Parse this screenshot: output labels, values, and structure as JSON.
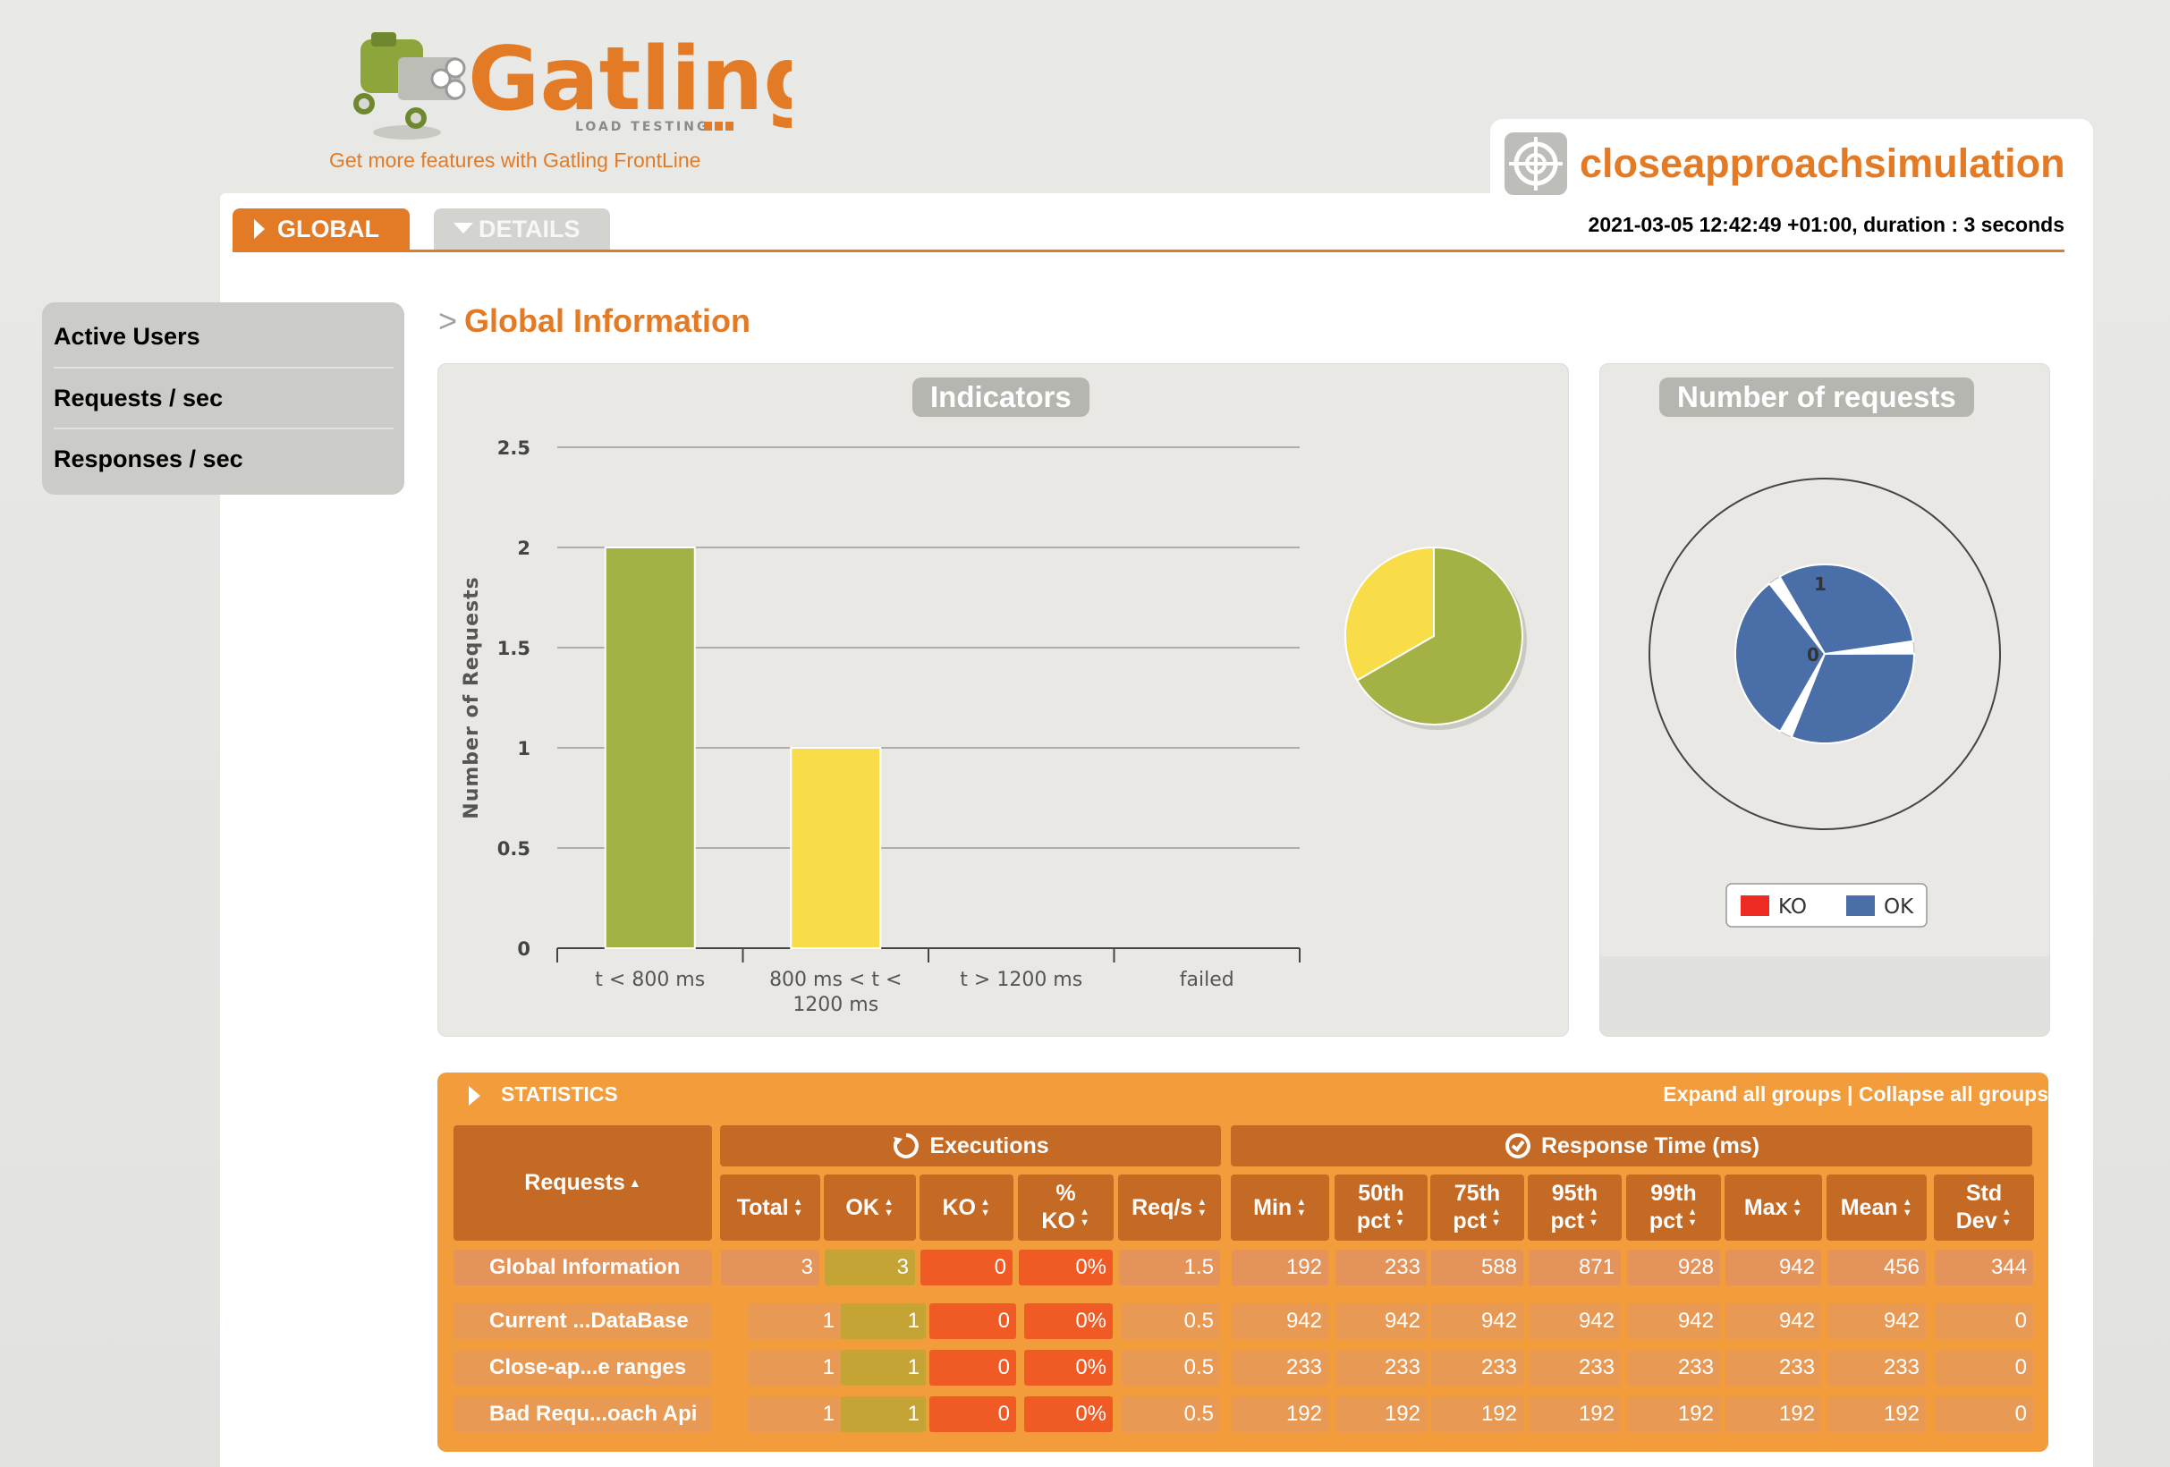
{
  "header": {
    "logo_text": "Gatling",
    "logo_sub": "LOAD TESTING",
    "frontline_link": "Get more features with Gatling FrontLine",
    "simulation_name": "closeapproachsimulation",
    "run_info": "2021-03-05 12:42:49 +01:00, duration : 3 seconds"
  },
  "tabs": [
    {
      "label": "GLOBAL"
    },
    {
      "label": "DETAILS"
    }
  ],
  "sidebar": {
    "items": [
      {
        "label": "Active Users"
      },
      {
        "label": "Requests / sec"
      },
      {
        "label": "Responses / sec"
      }
    ]
  },
  "section": {
    "title": "Global Information",
    "prefix": ">"
  },
  "indicators": {
    "title": "Indicators"
  },
  "number_of_requests": {
    "title": "Number of requests",
    "radial_labels": [
      "1",
      "0"
    ],
    "legend": [
      {
        "label": "KO",
        "color": "#ed2b22"
      },
      {
        "label": "OK",
        "color": "#4a6ea8"
      }
    ]
  },
  "chart_data": [
    {
      "type": "bar",
      "title": "Indicators",
      "ylabel": "Number of Requests",
      "xlabel": "",
      "categories": [
        "t < 800 ms",
        "800 ms < t < 1200 ms",
        "t > 1200 ms",
        "failed"
      ],
      "category_lines": [
        [
          "t < 800 ms"
        ],
        [
          "800 ms < t <",
          "1200 ms"
        ],
        [
          "t > 1200 ms"
        ],
        [
          "failed"
        ]
      ],
      "values": [
        2,
        1,
        0,
        0
      ],
      "colors": [
        "#a3b145",
        "#f8dc48",
        "#e37b26",
        "#ed2b22"
      ],
      "ylim": [
        0,
        2.5
      ],
      "yticks": [
        "0",
        "0.5",
        "1",
        "1.5",
        "2",
        "2.5"
      ],
      "grid": true
    },
    {
      "type": "pie",
      "slices": [
        {
          "label": "t < 800 ms",
          "value": 2,
          "color": "#a3b145"
        },
        {
          "label": "800 ms < t < 1200 ms",
          "value": 1,
          "color": "#f8dc48"
        }
      ]
    },
    {
      "type": "pie",
      "title": "Number of requests",
      "categories": [
        "Current ...DataBase",
        "Close-ap...e ranges",
        "Bad Requ...oach Api"
      ],
      "series": [
        {
          "name": "OK",
          "values": [
            1,
            1,
            1
          ],
          "color": "#4a6ea8"
        },
        {
          "name": "KO",
          "values": [
            0,
            0,
            0
          ],
          "color": "#ed2b22"
        }
      ],
      "rlim": [
        0,
        1
      ]
    }
  ],
  "statistics": {
    "title": "STATISTICS",
    "expand_label": "Expand all groups",
    "separator": " | ",
    "collapse_label": "Collapse all groups",
    "executions_header": "Executions",
    "response_time_header": "Response Time (ms)",
    "columns": [
      {
        "l1": "Requests",
        "l2": ""
      },
      {
        "l1": "Total",
        "l2": ""
      },
      {
        "l1": "OK",
        "l2": ""
      },
      {
        "l1": "KO",
        "l2": ""
      },
      {
        "l1": "%",
        "l2": "KO"
      },
      {
        "l1": "Req/s",
        "l2": ""
      },
      {
        "l1": "Min",
        "l2": ""
      },
      {
        "l1": "50th",
        "l2": "pct"
      },
      {
        "l1": "75th",
        "l2": "pct"
      },
      {
        "l1": "95th",
        "l2": "pct"
      },
      {
        "l1": "99th",
        "l2": "pct"
      },
      {
        "l1": "Max",
        "l2": ""
      },
      {
        "l1": "Mean",
        "l2": ""
      },
      {
        "l1": "Std",
        "l2": "Dev"
      }
    ],
    "global_row": [
      "Global Information",
      "3",
      "3",
      "0",
      "0%",
      "1.5",
      "192",
      "233",
      "588",
      "871",
      "928",
      "942",
      "456",
      "344"
    ],
    "rows": [
      [
        "Current ...DataBase",
        "1",
        "1",
        "0",
        "0%",
        "0.5",
        "942",
        "942",
        "942",
        "942",
        "942",
        "942",
        "942",
        "0"
      ],
      [
        "Close-ap...e ranges",
        "1",
        "1",
        "0",
        "0%",
        "0.5",
        "233",
        "233",
        "233",
        "233",
        "233",
        "233",
        "233",
        "0"
      ],
      [
        "Bad Requ...oach Api",
        "1",
        "1",
        "0",
        "0%",
        "0.5",
        "192",
        "192",
        "192",
        "192",
        "192",
        "192",
        "192",
        "0"
      ]
    ]
  }
}
